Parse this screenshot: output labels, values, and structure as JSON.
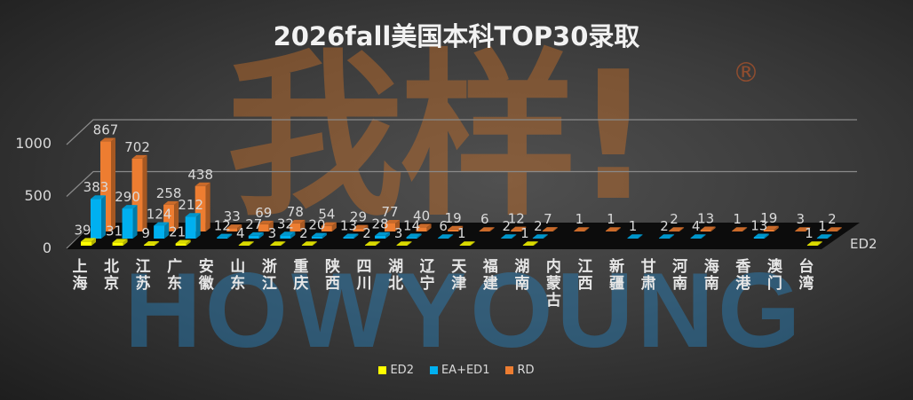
{
  "chart_data": {
    "type": "bar",
    "title": "2026fall美国本科TOP30录取",
    "categories": [
      "上海",
      "北京",
      "江苏",
      "广东",
      "安徽",
      "山东",
      "浙江",
      "重庆",
      "陕西",
      "四川",
      "湖北",
      "辽宁",
      "天津",
      "福建",
      "湖南",
      "内蒙古",
      "江西",
      "新疆",
      "甘肃",
      "河南",
      "海南",
      "香港",
      "澳门",
      "台湾"
    ],
    "series": [
      {
        "name": "ED2",
        "color": "#FFFF00",
        "values": [
          39,
          31,
          9,
          21,
          null,
          4,
          3,
          2,
          null,
          2,
          3,
          null,
          1,
          null,
          1,
          null,
          null,
          null,
          null,
          null,
          null,
          null,
          null,
          1
        ]
      },
      {
        "name": "EA+ED1",
        "color": "#00B0F0",
        "values": [
          383,
          290,
          124,
          212,
          12,
          27,
          32,
          20,
          13,
          28,
          14,
          6,
          null,
          2,
          2,
          null,
          null,
          1,
          2,
          4,
          null,
          13,
          null,
          1
        ]
      },
      {
        "name": "RD",
        "color": "#ED7D31",
        "values": [
          867,
          702,
          258,
          438,
          33,
          69,
          78,
          54,
          29,
          77,
          40,
          19,
          6,
          12,
          7,
          1,
          1,
          null,
          2,
          13,
          1,
          19,
          3,
          2
        ]
      }
    ],
    "y_ticks": [
      "0",
      "500",
      "1000"
    ],
    "ylim": [
      0,
      1000
    ],
    "depth_axis_label": "ED2",
    "grid": true,
    "legend_position": "bottom",
    "three_d": true
  },
  "watermark": {
    "cn": "我样!",
    "en": "HOWYOUNG",
    "mark": "®"
  }
}
